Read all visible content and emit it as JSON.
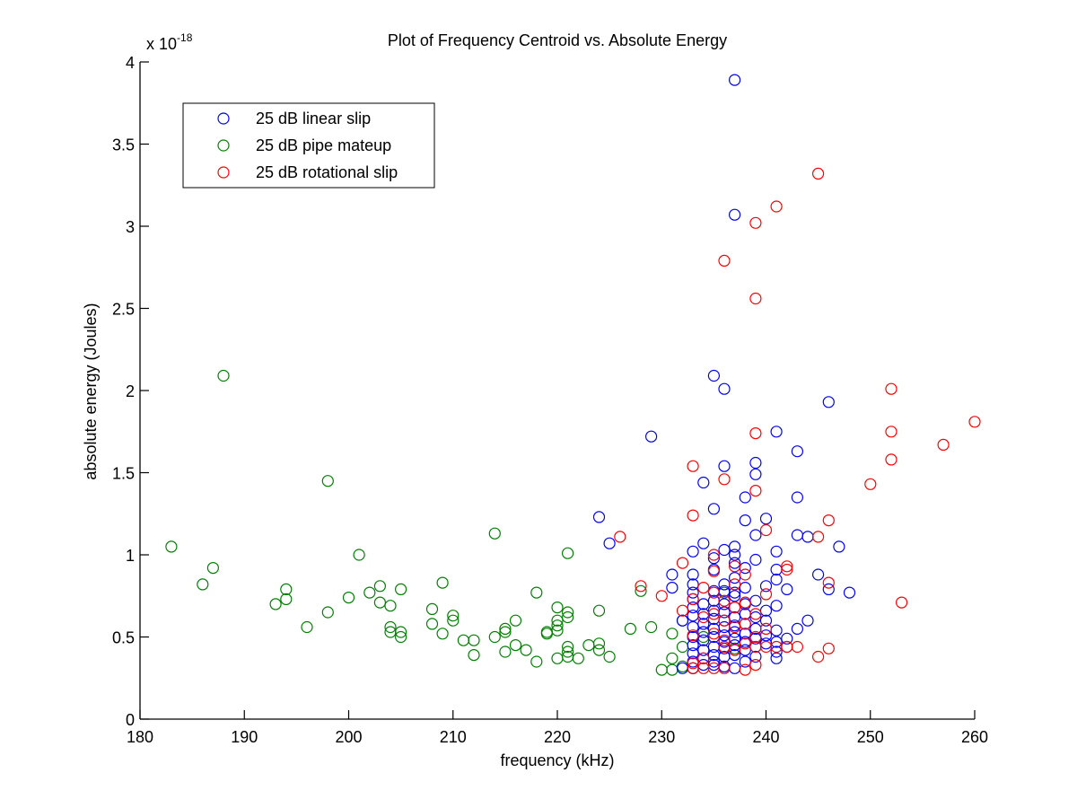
{
  "chart_data": {
    "type": "scatter",
    "title": "Plot of Frequency Centroid vs. Absolute Energy",
    "xlabel": "frequency (kHz)",
    "ylabel": "absolute energy (Joules)",
    "y_multiplier_label": "x 10",
    "y_multiplier_exponent": "-18",
    "xlim": [
      180,
      260
    ],
    "ylim": [
      0,
      4
    ],
    "x_ticks": [
      180,
      190,
      200,
      210,
      220,
      230,
      240,
      250,
      260
    ],
    "x_tick_labels": [
      "180",
      "190",
      "200",
      "210",
      "220",
      "230",
      "240",
      "250",
      "260"
    ],
    "y_ticks": [
      0,
      0.5,
      1,
      1.5,
      2,
      2.5,
      3,
      3.5,
      4
    ],
    "y_tick_labels": [
      "0",
      "0.5",
      "1",
      "1.5",
      "2",
      "2.5",
      "3",
      "3.5",
      "4"
    ],
    "grid": false,
    "legend_position": "top-left",
    "marker": "open-circle",
    "series": [
      {
        "name": "25 dB linear slip",
        "color": "#0000ff",
        "points": [
          [
            237,
            3.89
          ],
          [
            237,
            3.07
          ],
          [
            235,
            2.09
          ],
          [
            236,
            2.01
          ],
          [
            246,
            1.93
          ],
          [
            229,
            1.72
          ],
          [
            241,
            1.75
          ],
          [
            243,
            1.63
          ],
          [
            239,
            1.56
          ],
          [
            236,
            1.54
          ],
          [
            239,
            1.49
          ],
          [
            234,
            1.44
          ],
          [
            238,
            1.35
          ],
          [
            243,
            1.35
          ],
          [
            235,
            1.28
          ],
          [
            224,
            1.23
          ],
          [
            238,
            1.21
          ],
          [
            240,
            1.22
          ],
          [
            239,
            1.12
          ],
          [
            243,
            1.12
          ],
          [
            244,
            1.11
          ],
          [
            225,
            1.07
          ],
          [
            234,
            1.07
          ],
          [
            247,
            1.05
          ],
          [
            237,
            1.05
          ],
          [
            233,
            1.02
          ],
          [
            236,
            1.03
          ],
          [
            241,
            1.02
          ],
          [
            237,
            1.0
          ],
          [
            235,
            0.98
          ],
          [
            239,
            0.97
          ],
          [
            237,
            0.95
          ],
          [
            235,
            0.91
          ],
          [
            241,
            0.91
          ],
          [
            238,
            0.92
          ],
          [
            231,
            0.88
          ],
          [
            233,
            0.88
          ],
          [
            245,
            0.88
          ],
          [
            237,
            0.86
          ],
          [
            241,
            0.85
          ],
          [
            233,
            0.82
          ],
          [
            236,
            0.82
          ],
          [
            240,
            0.81
          ],
          [
            231,
            0.8
          ],
          [
            246,
            0.79
          ],
          [
            242,
            0.79
          ],
          [
            238,
            0.8
          ],
          [
            237,
            0.77
          ],
          [
            248,
            0.77
          ],
          [
            233,
            0.77
          ],
          [
            235,
            0.78
          ],
          [
            236,
            0.78
          ],
          [
            237,
            0.75
          ],
          [
            233,
            0.73
          ],
          [
            239,
            0.72
          ],
          [
            235,
            0.72
          ],
          [
            234,
            0.7
          ],
          [
            236,
            0.7
          ],
          [
            238,
            0.7
          ],
          [
            241,
            0.69
          ],
          [
            233,
            0.68
          ],
          [
            237,
            0.68
          ],
          [
            240,
            0.66
          ],
          [
            235,
            0.66
          ],
          [
            236,
            0.65
          ],
          [
            234,
            0.64
          ],
          [
            238,
            0.64
          ],
          [
            233,
            0.63
          ],
          [
            237,
            0.62
          ],
          [
            239,
            0.62
          ],
          [
            235,
            0.61
          ],
          [
            236,
            0.6
          ],
          [
            232,
            0.6
          ],
          [
            244,
            0.6
          ],
          [
            240,
            0.6
          ],
          [
            234,
            0.58
          ],
          [
            238,
            0.58
          ],
          [
            237,
            0.57
          ],
          [
            233,
            0.56
          ],
          [
            236,
            0.56
          ],
          [
            235,
            0.55
          ],
          [
            239,
            0.55
          ],
          [
            243,
            0.55
          ],
          [
            241,
            0.54
          ],
          [
            234,
            0.53
          ],
          [
            237,
            0.53
          ],
          [
            238,
            0.52
          ],
          [
            236,
            0.51
          ],
          [
            240,
            0.51
          ],
          [
            233,
            0.5
          ],
          [
            235,
            0.5
          ],
          [
            237,
            0.49
          ],
          [
            239,
            0.49
          ],
          [
            242,
            0.49
          ],
          [
            234,
            0.48
          ],
          [
            236,
            0.47
          ],
          [
            238,
            0.47
          ],
          [
            241,
            0.47
          ],
          [
            240,
            0.46
          ],
          [
            233,
            0.45
          ],
          [
            237,
            0.45
          ],
          [
            235,
            0.44
          ],
          [
            239,
            0.44
          ],
          [
            242,
            0.44
          ],
          [
            236,
            0.43
          ],
          [
            234,
            0.42
          ],
          [
            238,
            0.42
          ],
          [
            241,
            0.41
          ],
          [
            233,
            0.4
          ],
          [
            235,
            0.39
          ],
          [
            237,
            0.39
          ],
          [
            236,
            0.38
          ],
          [
            239,
            0.38
          ],
          [
            241,
            0.37
          ],
          [
            234,
            0.37
          ],
          [
            233,
            0.35
          ],
          [
            235,
            0.35
          ],
          [
            238,
            0.35
          ],
          [
            232,
            0.31
          ],
          [
            233,
            0.31
          ],
          [
            236,
            0.32
          ],
          [
            237,
            0.31
          ],
          [
            234,
            0.33
          ],
          [
            235,
            0.33
          ]
        ]
      },
      {
        "name": "25 dB pipe mateup",
        "color": "#008000",
        "points": [
          [
            183,
            1.05
          ],
          [
            186,
            0.82
          ],
          [
            187,
            0.92
          ],
          [
            188,
            2.09
          ],
          [
            193,
            0.7
          ],
          [
            194,
            0.79
          ],
          [
            194,
            0.73
          ],
          [
            196,
            0.56
          ],
          [
            198,
            1.45
          ],
          [
            198,
            0.65
          ],
          [
            200,
            0.74
          ],
          [
            201,
            1.0
          ],
          [
            202,
            0.77
          ],
          [
            203,
            0.81
          ],
          [
            203,
            0.71
          ],
          [
            204,
            0.69
          ],
          [
            204,
            0.56
          ],
          [
            204,
            0.53
          ],
          [
            205,
            0.79
          ],
          [
            205,
            0.53
          ],
          [
            205,
            0.5
          ],
          [
            208,
            0.67
          ],
          [
            208,
            0.58
          ],
          [
            209,
            0.83
          ],
          [
            209,
            0.52
          ],
          [
            210,
            0.63
          ],
          [
            210,
            0.6
          ],
          [
            211,
            0.48
          ],
          [
            212,
            0.48
          ],
          [
            212,
            0.39
          ],
          [
            214,
            1.13
          ],
          [
            214,
            0.5
          ],
          [
            215,
            0.55
          ],
          [
            215,
            0.53
          ],
          [
            215,
            0.41
          ],
          [
            216,
            0.6
          ],
          [
            216,
            0.45
          ],
          [
            217,
            0.42
          ],
          [
            218,
            0.77
          ],
          [
            218,
            0.35
          ],
          [
            219,
            0.52
          ],
          [
            219,
            0.53
          ],
          [
            220,
            0.68
          ],
          [
            220,
            0.6
          ],
          [
            220,
            0.57
          ],
          [
            220,
            0.54
          ],
          [
            220,
            0.37
          ],
          [
            221,
            1.01
          ],
          [
            221,
            0.65
          ],
          [
            221,
            0.62
          ],
          [
            221,
            0.44
          ],
          [
            221,
            0.38
          ],
          [
            221,
            0.41
          ],
          [
            222,
            0.37
          ],
          [
            223,
            0.45
          ],
          [
            224,
            0.66
          ],
          [
            224,
            0.46
          ],
          [
            224,
            0.42
          ],
          [
            225,
            0.38
          ],
          [
            227,
            0.55
          ],
          [
            228,
            0.78
          ],
          [
            229,
            0.56
          ],
          [
            230,
            0.3
          ],
          [
            231,
            0.52
          ],
          [
            231,
            0.37
          ],
          [
            231,
            0.3
          ],
          [
            232,
            0.6
          ],
          [
            232,
            0.44
          ],
          [
            232,
            0.32
          ],
          [
            233,
            0.31
          ],
          [
            234,
            0.5
          ],
          [
            236,
            0.77
          ],
          [
            237,
            0.43
          ]
        ]
      },
      {
        "name": "25 dB rotational slip",
        "color": "#ff0000",
        "points": [
          [
            245,
            3.32
          ],
          [
            241,
            3.12
          ],
          [
            239,
            3.02
          ],
          [
            236,
            2.79
          ],
          [
            239,
            2.56
          ],
          [
            252,
            2.01
          ],
          [
            260,
            1.81
          ],
          [
            252,
            1.75
          ],
          [
            239,
            1.74
          ],
          [
            257,
            1.67
          ],
          [
            252,
            1.58
          ],
          [
            233,
            1.54
          ],
          [
            236,
            1.46
          ],
          [
            250,
            1.43
          ],
          [
            239,
            1.39
          ],
          [
            233,
            1.24
          ],
          [
            246,
            1.21
          ],
          [
            240,
            1.15
          ],
          [
            226,
            1.11
          ],
          [
            245,
            1.11
          ],
          [
            235,
            1.0
          ],
          [
            232,
            0.95
          ],
          [
            237,
            0.93
          ],
          [
            242,
            0.93
          ],
          [
            235,
            0.9
          ],
          [
            238,
            0.88
          ],
          [
            242,
            0.91
          ],
          [
            228,
            0.81
          ],
          [
            234,
            0.8
          ],
          [
            246,
            0.83
          ],
          [
            237,
            0.82
          ],
          [
            235,
            0.77
          ],
          [
            230,
            0.75
          ],
          [
            240,
            0.76
          ],
          [
            253,
            0.71
          ],
          [
            233,
            0.73
          ],
          [
            236,
            0.72
          ],
          [
            238,
            0.71
          ],
          [
            237,
            0.68
          ],
          [
            232,
            0.66
          ],
          [
            235,
            0.64
          ],
          [
            239,
            0.64
          ],
          [
            234,
            0.62
          ],
          [
            236,
            0.6
          ],
          [
            238,
            0.58
          ],
          [
            237,
            0.56
          ],
          [
            240,
            0.55
          ],
          [
            235,
            0.52
          ],
          [
            233,
            0.51
          ],
          [
            239,
            0.5
          ],
          [
            236,
            0.48
          ],
          [
            238,
            0.46
          ],
          [
            240,
            0.44
          ],
          [
            239,
            0.44
          ],
          [
            241,
            0.44
          ],
          [
            242,
            0.44
          ],
          [
            243,
            0.44
          ],
          [
            246,
            0.43
          ],
          [
            236,
            0.44
          ],
          [
            237,
            0.42
          ],
          [
            245,
            0.38
          ],
          [
            234,
            0.37
          ],
          [
            239,
            0.33
          ],
          [
            233,
            0.31
          ],
          [
            234,
            0.31
          ],
          [
            235,
            0.31
          ],
          [
            236,
            0.31
          ],
          [
            238,
            0.3
          ],
          [
            233,
            0.34
          ]
        ]
      }
    ]
  }
}
